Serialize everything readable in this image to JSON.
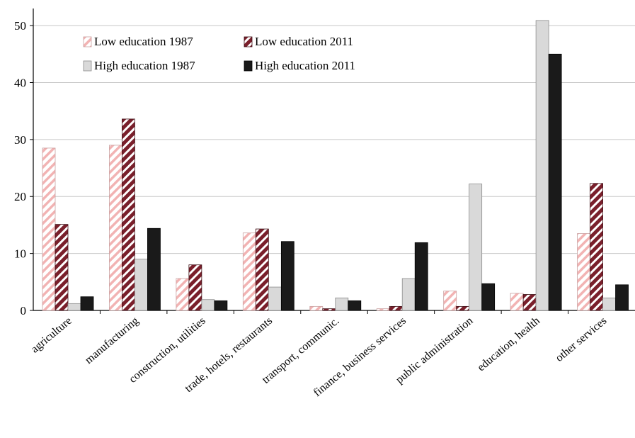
{
  "chart_data": {
    "type": "bar",
    "title": "",
    "xlabel": "",
    "ylabel": "",
    "ylim": [
      0,
      53
    ],
    "yticks": [
      0,
      10,
      20,
      30,
      40,
      50
    ],
    "grid": true,
    "legend_position": "top-left",
    "categories": [
      "agriculture",
      "manufacturing",
      "construction, utilities",
      "trade, hotels, restaurants",
      "transport, communic.",
      "finance, business services",
      "public administration",
      "education, health",
      "other services"
    ],
    "series": [
      {
        "name": "Low education 1987",
        "style": "light-hatch",
        "color": "#f2b3b3",
        "values": [
          28.5,
          29.0,
          5.6,
          13.6,
          0.7,
          0.3,
          3.4,
          3.0,
          13.5
        ]
      },
      {
        "name": "Low education 2011",
        "style": "dark-hatch",
        "color": "#7a1f2b",
        "values": [
          15.1,
          33.6,
          8.0,
          14.3,
          0.3,
          0.7,
          0.7,
          2.8,
          22.3
        ]
      },
      {
        "name": "High education 1987",
        "style": "solid",
        "color": "#d9d9d9",
        "values": [
          1.2,
          9.0,
          1.9,
          4.1,
          2.2,
          5.6,
          22.2,
          50.9,
          2.2
        ]
      },
      {
        "name": "High education 2011",
        "style": "solid",
        "color": "#1a1a1a",
        "values": [
          2.4,
          14.4,
          1.7,
          12.1,
          1.7,
          11.9,
          4.7,
          45.0,
          4.5
        ]
      }
    ]
  }
}
